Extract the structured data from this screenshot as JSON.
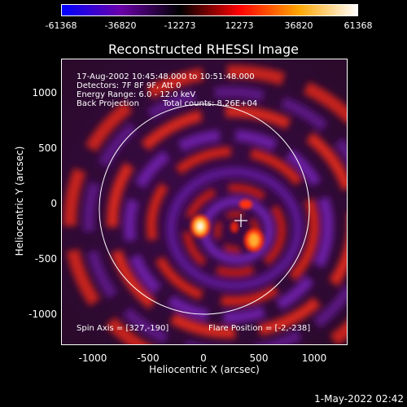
{
  "colorbar": {
    "ticks": [
      "-61368",
      "-36820",
      "-12273",
      "12273",
      "36820",
      "61368"
    ],
    "colors": [
      "#0000ff",
      "#6a00a8",
      "#000000",
      "#ff0000",
      "#ffa500",
      "#ffffff"
    ]
  },
  "title": "Reconstructed RHESSI Image",
  "info": {
    "line1": "17-Aug-2002 10:45:48.000 to 10:51:48.000",
    "line2": "Detectors: 7F 8F 9F, Att 0",
    "line3": "Energy Range: 6.0 - 12.0 keV",
    "line4a": "Back Projection",
    "line4b": "Total counts: 8.26E+04",
    "spin_axis": "Spin Axis = [327,-190]",
    "flare_position": "Flare Position = [-2,-238]"
  },
  "axes": {
    "xlabel": "Heliocentric X (arcsec)",
    "ylabel": "Heliocentric Y (arcsec)",
    "xticks": [
      "-1000",
      "-500",
      "0",
      "500",
      "1000"
    ],
    "yticks": [
      "1000",
      "500",
      "0",
      "-500",
      "-1000"
    ]
  },
  "footer": "1-May-2022 02:42"
}
